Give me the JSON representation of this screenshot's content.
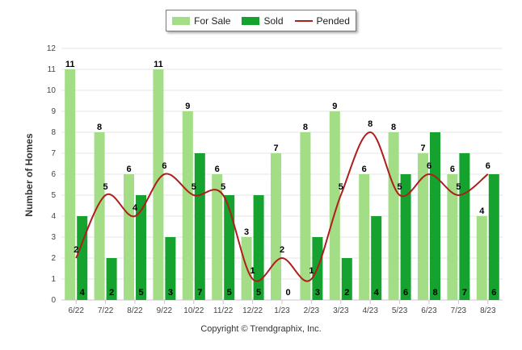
{
  "legend": {
    "for_sale": "For Sale",
    "sold": "Sold",
    "pended": "Pended"
  },
  "footer": "Copyright © Trendgraphix, Inc.",
  "colors": {
    "for_sale": "#a3dd85",
    "sold": "#15a22f",
    "pended": "#b01d1d",
    "grid": "#e6e6e6"
  },
  "chart_data": {
    "type": "bar",
    "categories": [
      "6/22",
      "7/22",
      "8/22",
      "9/22",
      "10/22",
      "11/22",
      "12/22",
      "1/23",
      "2/23",
      "3/23",
      "4/23",
      "5/23",
      "6/23",
      "7/23",
      "8/23"
    ],
    "series": [
      {
        "name": "For Sale",
        "type": "bar",
        "values": [
          11,
          8,
          6,
          11,
          9,
          6,
          3,
          7,
          8,
          9,
          6,
          8,
          7,
          6,
          4
        ]
      },
      {
        "name": "Sold",
        "type": "bar",
        "values": [
          4,
          2,
          5,
          3,
          7,
          5,
          5,
          0,
          3,
          2,
          4,
          6,
          8,
          7,
          6
        ]
      },
      {
        "name": "Pended",
        "type": "line",
        "values": [
          2,
          5,
          4,
          6,
          5,
          5,
          1,
          2,
          1,
          5,
          8,
          5,
          6,
          5,
          6
        ]
      }
    ],
    "ylabel": "Number of Homes",
    "xlabel": "",
    "ylim": [
      0,
      12
    ],
    "yticks": [
      0,
      1,
      2,
      3,
      4,
      5,
      6,
      7,
      8,
      9,
      10,
      11,
      12
    ],
    "grid": true,
    "legend_position": "top"
  }
}
